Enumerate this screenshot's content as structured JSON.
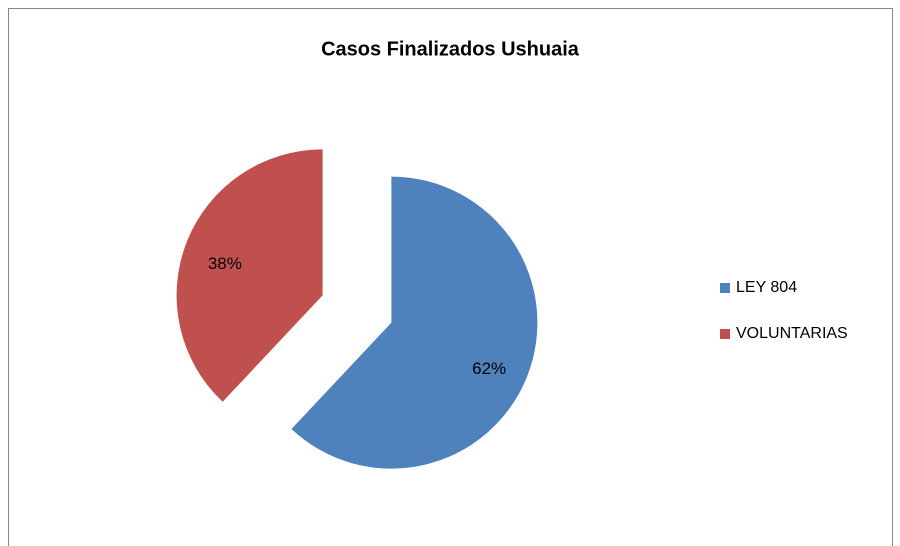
{
  "chart_data": {
    "type": "pie",
    "title": "Casos Finalizados Ushuaia",
    "categories": [
      "LEY 804",
      "VOLUNTARIAS"
    ],
    "values": [
      62,
      38
    ],
    "value_labels": [
      "62%",
      "38%"
    ],
    "colors": [
      "#4f81bd",
      "#c0504d"
    ],
    "exploded": true,
    "legend": "right"
  }
}
